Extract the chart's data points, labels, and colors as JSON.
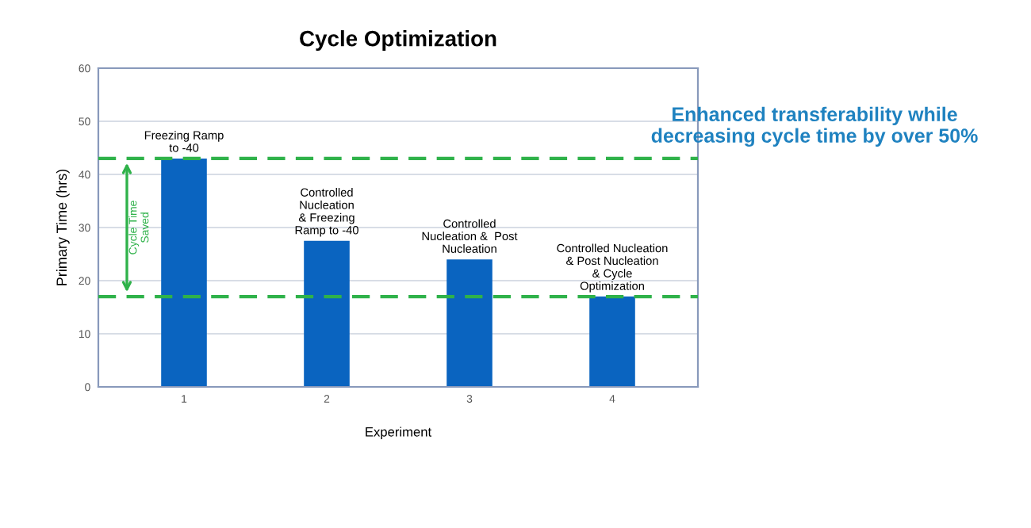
{
  "chart_data": {
    "type": "bar",
    "title": "Cycle Optimization",
    "xlabel": "Experiment",
    "ylabel": "Primary Time (hrs)",
    "categories": [
      "1",
      "2",
      "3",
      "4"
    ],
    "values": [
      43,
      27.5,
      24,
      17
    ],
    "color": "#0a64c0",
    "ylim": [
      0,
      60
    ],
    "yticks": [
      0,
      10,
      20,
      30,
      40,
      50,
      60
    ],
    "grid": "y",
    "ref_lines": [
      {
        "axis": "y",
        "value": 43,
        "label": null,
        "color": "#2fb24a",
        "line_style": "dashed"
      },
      {
        "axis": "y",
        "value": 17,
        "label": null,
        "color": "#2fb24a",
        "line_style": "dashed"
      }
    ],
    "annotations": [
      {
        "text": "Freezing Ramp\nto -40",
        "x": "1",
        "y": 43
      },
      {
        "text": "Controlled\nNucleation\n& Freezing\nRamp to -40",
        "x": "2",
        "y": 27.5
      },
      {
        "text": "Controlled\nNucleation &  Post\nNucleation",
        "x": "3",
        "y": 24
      },
      {
        "text": "Controlled Nucleation\n& Post Nucleation\n& Cycle\nOptimization",
        "x": "4",
        "y": 17
      },
      "Cycle Time\nSaved",
      "Enhanced transferability while\ndecreasing cycle time by over 50%"
    ]
  }
}
